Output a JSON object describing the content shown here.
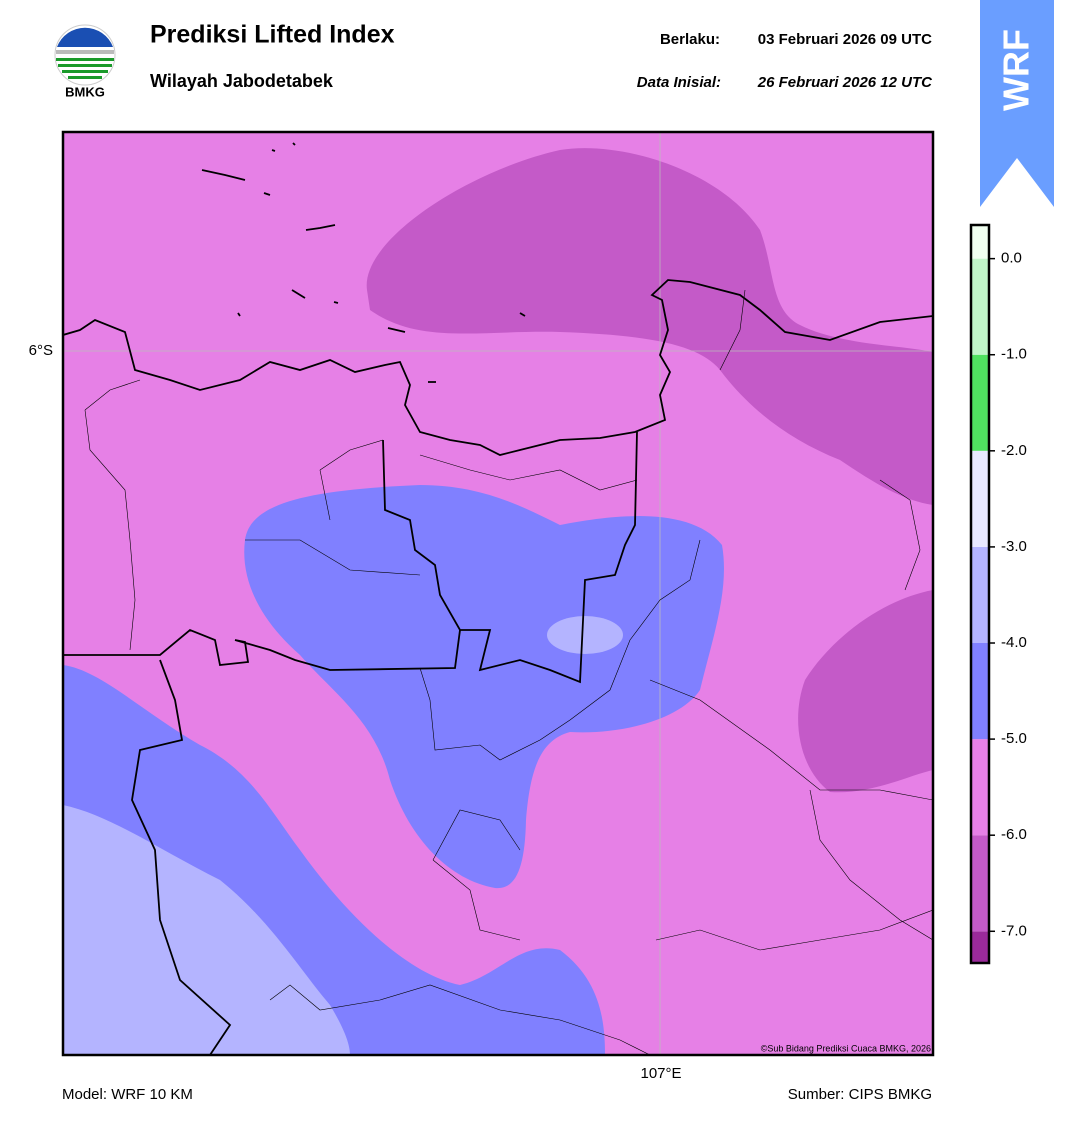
{
  "header": {
    "logo_text": "BMKG",
    "title": "Prediksi Lifted Index",
    "subtitle": "Wilayah Jabodetabek",
    "valid_label": "Berlaku:",
    "valid_time": "03 Februari 2026 09 UTC",
    "init_label": "Data Inisial:",
    "init_time": "26 Februari 2026 12 UTC",
    "badge": "WRF"
  },
  "map": {
    "lat_label": "6°S",
    "lon_label": "107°E",
    "credit": "©Sub Bidang Prediksi Cuaca BMKG, 2026"
  },
  "colorbar": {
    "range": [
      -7.33,
      0.35
    ],
    "bins": [
      -7.33,
      -7,
      -6,
      -5,
      -4,
      -3,
      -2,
      -1,
      0,
      0.35
    ],
    "colors": [
      "#9a2a9a",
      "#c45ac8",
      "#e680e6",
      "#8080ff",
      "#b4b4ff",
      "#e8e8ff",
      "#50e060",
      "#c0f5c8",
      "#f0fff0"
    ],
    "ticks": [
      {
        "value": 0,
        "label": "0.0"
      },
      {
        "value": -1,
        "label": "-1.0"
      },
      {
        "value": -2,
        "label": "-2.0"
      },
      {
        "value": -3,
        "label": "-3.0"
      },
      {
        "value": -4,
        "label": "-4.0"
      },
      {
        "value": -5,
        "label": "-5.0"
      },
      {
        "value": -6,
        "label": "-6.0"
      },
      {
        "value": -7,
        "label": "-7.0"
      }
    ]
  },
  "footer": {
    "model": "Model: WRF 10 KM",
    "source": "Sumber: CIPS BMKG"
  }
}
